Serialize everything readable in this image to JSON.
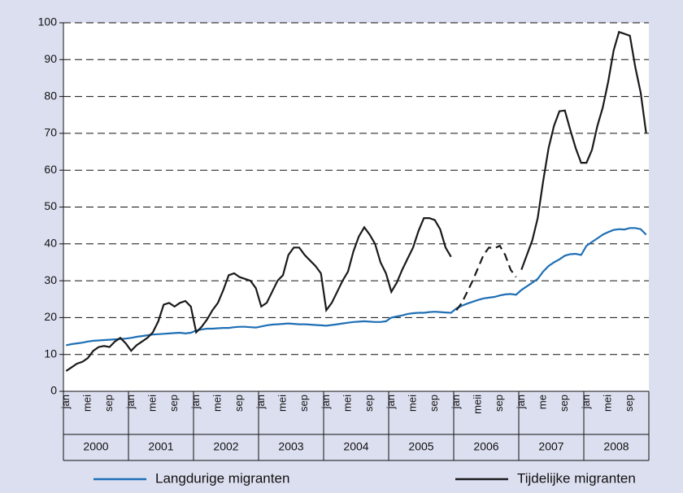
{
  "chart_data": {
    "type": "line",
    "categories": [
      "jan",
      null,
      null,
      null,
      "mei",
      null,
      null,
      null,
      "sep",
      null,
      null,
      null,
      "jan",
      null,
      null,
      null,
      "mei",
      null,
      null,
      null,
      "sep",
      null,
      null,
      null,
      "jan",
      null,
      null,
      null,
      "mei",
      null,
      null,
      null,
      "sep",
      null,
      null,
      null,
      "jan",
      null,
      null,
      null,
      "mei",
      null,
      null,
      null,
      "sep",
      null,
      null,
      null,
      "jan",
      null,
      null,
      null,
      "mei",
      null,
      null,
      null,
      "sep",
      null,
      null,
      null,
      "jan",
      null,
      null,
      null,
      "mei",
      null,
      null,
      null,
      "sep",
      null,
      null,
      null,
      "jan",
      null,
      null,
      null,
      "meii",
      null,
      null,
      null,
      "sep",
      null,
      null,
      null,
      "jan",
      null,
      null,
      null,
      "me",
      null,
      null,
      null,
      "sep",
      null,
      null,
      null,
      "jan",
      null,
      null,
      null,
      "mei",
      null,
      null,
      null,
      "sep",
      null,
      null,
      null
    ],
    "years": [
      "2000",
      "2001",
      "2002",
      "2003",
      "2004",
      "2005",
      "2006",
      "2007",
      "2008"
    ],
    "dashed_years": [
      "2006"
    ],
    "series": [
      {
        "name": "Langdurige migranten",
        "color": "#1f6fb5",
        "values": [
          12.5,
          12.8,
          13,
          13.2,
          13.5,
          13.7,
          13.8,
          13.9,
          14,
          14.1,
          14.2,
          14.3,
          14.5,
          14.8,
          15,
          15.2,
          15.4,
          15.5,
          15.6,
          15.7,
          15.8,
          15.9,
          15.7,
          15.9,
          16.5,
          16.8,
          17,
          17,
          17.1,
          17.2,
          17.2,
          17.4,
          17.5,
          17.5,
          17.4,
          17.3,
          17.6,
          17.9,
          18.1,
          18.2,
          18.3,
          18.4,
          18.3,
          18.2,
          18.2,
          18.1,
          18,
          17.9,
          17.8,
          18,
          18.2,
          18.4,
          18.6,
          18.8,
          18.9,
          19,
          18.9,
          18.8,
          18.8,
          19,
          20,
          20.3,
          20.6,
          21,
          21.2,
          21.3,
          21.3,
          21.5,
          21.6,
          21.5,
          21.4,
          21.3,
          22.5,
          23.2,
          23.8,
          24.3,
          24.8,
          25.2,
          25.4,
          25.6,
          26,
          26.3,
          26.4,
          26.2,
          27.5,
          28.5,
          29.5,
          30.5,
          32.5,
          34,
          35,
          35.8,
          36.8,
          37.2,
          37.3,
          37,
          39.5,
          40.5,
          41.5,
          42.5,
          43.2,
          43.8,
          44,
          43.9,
          44.3,
          44.3,
          44,
          42.5
        ]
      },
      {
        "name": "Tijdelijke migranten",
        "color": "#1a1a1a",
        "values": [
          5.5,
          6.5,
          7.5,
          8,
          9,
          11,
          12,
          12.3,
          12,
          13.5,
          14.5,
          13,
          11,
          12.5,
          13.5,
          14.5,
          16,
          19,
          23.5,
          24,
          23,
          24,
          24.5,
          23,
          16,
          17.5,
          19.5,
          22,
          24,
          27.5,
          31.5,
          32,
          31,
          30.5,
          30,
          28,
          23,
          24,
          27,
          30,
          31.5,
          37,
          39,
          39,
          37,
          35.5,
          34,
          32,
          22,
          24,
          27,
          30,
          32.5,
          38,
          42,
          44.5,
          42.5,
          40,
          35,
          32,
          27,
          29.5,
          33,
          36,
          39,
          43.5,
          47,
          47,
          46.5,
          44,
          39,
          36.5,
          22,
          24,
          27,
          30,
          33.5,
          37,
          39,
          38.8,
          39.5,
          37,
          33,
          31,
          33,
          37,
          41,
          47,
          57,
          66,
          72,
          76,
          76.2,
          71,
          66,
          62,
          62,
          65.5,
          72,
          77,
          84,
          92.5,
          97.5,
          97,
          96.5,
          88,
          81,
          70
        ]
      }
    ],
    "ylim": [
      0,
      100
    ],
    "yticks": [
      0,
      10,
      20,
      30,
      40,
      50,
      60,
      70,
      80,
      90,
      100
    ],
    "grid": true
  }
}
